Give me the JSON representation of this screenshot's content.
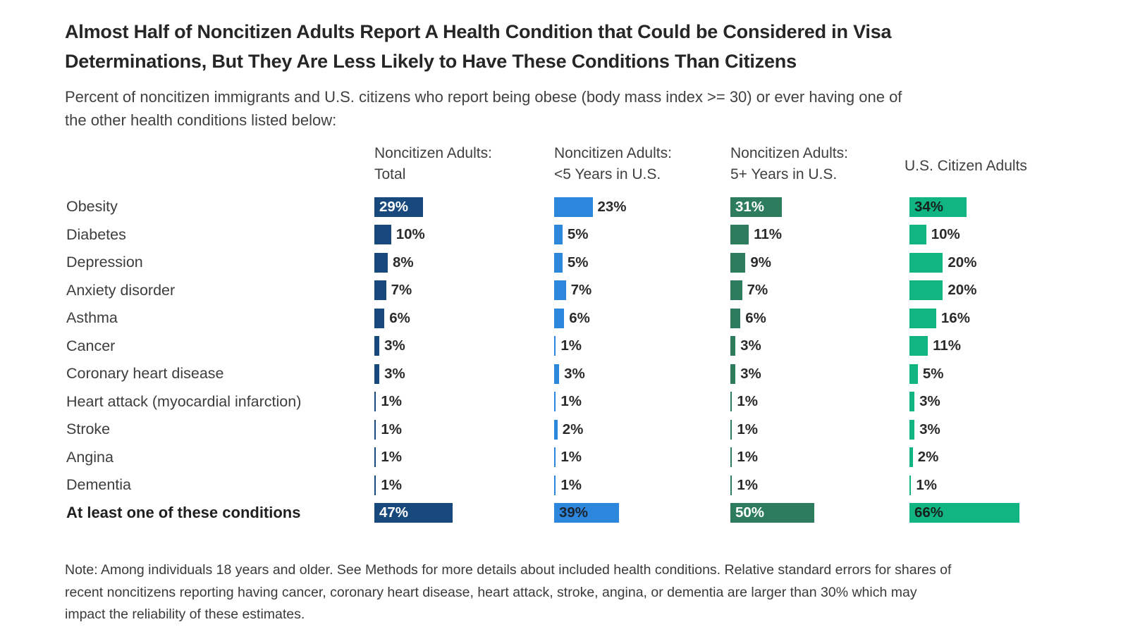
{
  "title": "Almost Half of Noncitizen Adults Report A Health Condition that Could be Considered in Visa\nDeterminations, But They Are Less Likely to Have These Conditions Than Citizens",
  "subtitle": "Percent of noncitizen immigrants and U.S. citizens who report being obese (body mass index >= 30) or ever having one of\nthe other health conditions listed below:",
  "note": "Note: Among individuals 18 years and older. See Methods for more details about included health conditions. Relative standard errors for shares of\nrecent noncitizens reporting having cancer, coronary heart disease, heart attack, stroke, angina, or dementia are larger than 30% which may\nimpact the reliability of these estimates.",
  "chart_data": {
    "type": "bar",
    "orientation": "horizontal",
    "unit": "%",
    "value_range": [
      0,
      66
    ],
    "categories": [
      "Obesity",
      "Diabetes",
      "Depression",
      "Anxiety disorder",
      "Asthma",
      "Cancer",
      "Coronary heart disease",
      "Heart attack (myocardial infarction)",
      "Stroke",
      "Angina",
      "Dementia",
      "At least one of these conditions"
    ],
    "emphasized_category": "At least one of these conditions",
    "series": [
      {
        "name": "Noncitizen Adults:\nTotal",
        "color": "#17497d",
        "values": [
          29,
          10,
          8,
          7,
          6,
          3,
          3,
          1,
          1,
          1,
          1,
          47
        ],
        "label_inside_rows": [
          0,
          11
        ],
        "inside_label_color": "#ffffff"
      },
      {
        "name": "Noncitizen Adults:\n<5 Years in U.S.",
        "color": "#2b86dc",
        "values": [
          23,
          5,
          5,
          7,
          6,
          1,
          3,
          1,
          2,
          1,
          1,
          39
        ],
        "label_inside_rows": [
          11
        ],
        "inside_label_color": "#1c2430"
      },
      {
        "name": "Noncitizen Adults:\n5+ Years in U.S.",
        "color": "#2e7c5e",
        "values": [
          31,
          11,
          9,
          7,
          6,
          3,
          3,
          1,
          1,
          1,
          1,
          50
        ],
        "label_inside_rows": [
          0,
          11
        ],
        "inside_label_color": "#ffffff"
      },
      {
        "name": "U.S. Citizen Adults",
        "color": "#10b582",
        "values": [
          34,
          10,
          20,
          20,
          16,
          11,
          5,
          3,
          3,
          2,
          1,
          66
        ],
        "label_inside_rows": [
          0,
          11
        ],
        "inside_label_color": "#16211c"
      }
    ]
  }
}
